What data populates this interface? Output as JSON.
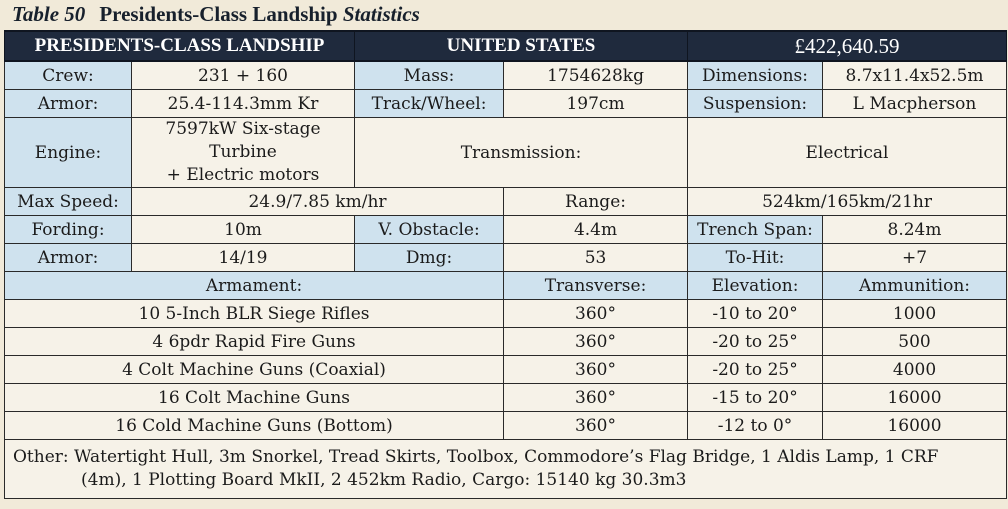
{
  "title": {
    "number": "Table 50",
    "name": "Presidents-Class Landship",
    "suffix": "Statistics"
  },
  "header": {
    "vehicle": "PRESIDENTS-CLASS LANDSHIP",
    "nation": "UNITED STATES",
    "price": "£422,640.59"
  },
  "stats": {
    "crew_label": "Crew:",
    "crew": "231 + 160",
    "mass_label": "Mass:",
    "mass": "1754628kg",
    "dimensions_label": "Dimensions:",
    "dimensions": "8.7x11.4x52.5m",
    "armor_label": "Armor:",
    "armor": "25.4-114.3mm Kr",
    "track_label": "Track/Wheel:",
    "track": "197cm",
    "suspension_label": "Suspension:",
    "suspension": "L Macpherson",
    "engine_label": "Engine:",
    "engine_line1": "7597kW Six-stage Turbine",
    "engine_line2": "+ Electric motors",
    "transmission_label": "Transmission:",
    "transmission": "Electrical",
    "maxspeed_label": "Max Speed:",
    "maxspeed": "24.9/7.85 km/hr",
    "range_label": "Range:",
    "range": "524km/165km/21hr",
    "fording_label": "Fording:",
    "fording": "10m",
    "vobstacle_label": "V. Obstacle:",
    "vobstacle": "4.4m",
    "trench_label": "Trench Span:",
    "trench": "8.24m",
    "armor2_label": "Armor:",
    "armor2": "14/19",
    "dmg_label": "Dmg:",
    "dmg": "53",
    "tohit_label": "To-Hit:",
    "tohit": "+7"
  },
  "armament": {
    "headers": {
      "armament": "Armament:",
      "transverse": "Transverse:",
      "elevation": "Elevation:",
      "ammunition": "Ammunition:"
    },
    "rows": [
      {
        "name": "10 5-Inch BLR Siege Rifles",
        "transverse": "360°",
        "elevation": "-10 to 20°",
        "ammunition": "1000"
      },
      {
        "name": "4 6pdr Rapid Fire Guns",
        "transverse": "360°",
        "elevation": "-20 to 25°",
        "ammunition": "500"
      },
      {
        "name": "4 Colt Machine Guns (Coaxial)",
        "transverse": "360°",
        "elevation": "-20 to 25°",
        "ammunition": "4000"
      },
      {
        "name": "16 Colt Machine Guns",
        "transverse": "360°",
        "elevation": "-15 to 20°",
        "ammunition": "16000"
      },
      {
        "name": "16 Cold Machine Guns (Bottom)",
        "transverse": "360°",
        "elevation": "-12 to 0°",
        "ammunition": "16000"
      }
    ]
  },
  "other": {
    "line1": "Other: Watertight Hull, 3m Snorkel, Tread Skirts, Toolbox, Commodore’s Flag Bridge, 1 Aldis Lamp, 1 CRF",
    "line2": "(4m), 1 Plotting Board MkII, 2 452km Radio, Cargo: 15140 kg 30.3m3"
  }
}
